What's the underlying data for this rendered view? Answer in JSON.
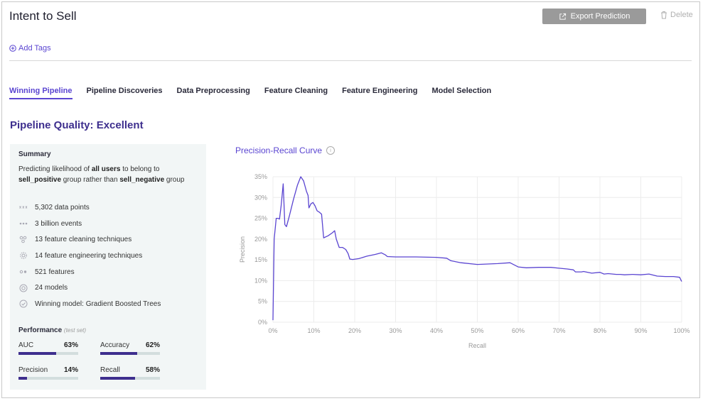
{
  "header": {
    "title": "Intent to Sell",
    "export_label": "Export Prediction",
    "delete_label": "Delete",
    "add_tags_label": "Add Tags"
  },
  "tabs": [
    {
      "label": "Winning Pipeline",
      "active": true
    },
    {
      "label": "Pipeline Discoveries",
      "active": false
    },
    {
      "label": "Data Preprocessing",
      "active": false
    },
    {
      "label": "Feature Cleaning",
      "active": false
    },
    {
      "label": "Feature Engineering",
      "active": false
    },
    {
      "label": "Model Selection",
      "active": false
    }
  ],
  "quality": "Pipeline Quality: Excellent",
  "summary": {
    "header": "Summary",
    "desc_parts": {
      "p1": "Predicting likelihood of ",
      "b1": "all users",
      "p2": " to belong to ",
      "b2": "sell_positive",
      "p3": " group rather than ",
      "b3": "sell_negative",
      "p4": " group"
    },
    "stats": [
      {
        "icon": "data-points-icon",
        "text": "5,302 data points"
      },
      {
        "icon": "events-icon",
        "text": "3 billion events"
      },
      {
        "icon": "cleaning-icon",
        "text": "13 feature cleaning techniques"
      },
      {
        "icon": "gear-icon",
        "text": "14 feature engineering techniques"
      },
      {
        "icon": "features-icon",
        "text": "521 features"
      },
      {
        "icon": "models-icon",
        "text": "24 models"
      },
      {
        "icon": "check-circle-icon",
        "text": "Winning model: Gradient Boosted Trees"
      }
    ],
    "performance": {
      "header": "Performance",
      "note": "(test set)",
      "metrics": [
        {
          "label": "AUC",
          "value": "63%",
          "fraction": 0.63
        },
        {
          "label": "Accuracy",
          "value": "62%",
          "fraction": 0.62
        },
        {
          "label": "Precision",
          "value": "14%",
          "fraction": 0.14
        },
        {
          "label": "Recall",
          "value": "58%",
          "fraction": 0.58
        }
      ]
    }
  },
  "colors": {
    "accent": "#5a45d1",
    "dark_accent": "#3e2f8e",
    "panel_bg": "#f2f6f6"
  },
  "chart_data": {
    "type": "line",
    "title": "Precision-Recall Curve",
    "xlabel": "Recall",
    "ylabel": "Precision",
    "xlim": [
      0,
      100
    ],
    "ylim": [
      0,
      35
    ],
    "xticks": [
      "0%",
      "10%",
      "20%",
      "30%",
      "40%",
      "50%",
      "60%",
      "70%",
      "80%",
      "90%",
      "100%"
    ],
    "yticks": [
      "0%",
      "5%",
      "10%",
      "15%",
      "20%",
      "25%",
      "30%",
      "35%"
    ],
    "grid": true,
    "series": [
      {
        "x": [
          0,
          0.3,
          0.8,
          1.2,
          1.6,
          2.0,
          2.5,
          2.9,
          3.3,
          4.0,
          5.0,
          6.0,
          6.8,
          7.5,
          8.2,
          8.6,
          8.8,
          9.3,
          9.8,
          10.3,
          10.8,
          11.3,
          11.9,
          12.4,
          13.5,
          14.5,
          15.1,
          15.5,
          16.2,
          17.0,
          17.8,
          18.4,
          18.8,
          19.5,
          21.0,
          23.0,
          25.0,
          26.5,
          27.5,
          28.0,
          30.0,
          35.0,
          40.0,
          42.5,
          43.5,
          46.0,
          50.0,
          55.0,
          58.0,
          60.0,
          62.0,
          65.0,
          68.0,
          70.0,
          72.0,
          73.5,
          74.0,
          75.5,
          76.0,
          78.0,
          80.0,
          81.0,
          82.0,
          84.0,
          85.0,
          86.0,
          88.0,
          90.0,
          92.0,
          94.0,
          96.0,
          98.0,
          99.5,
          100.0
        ],
        "y": [
          0.5,
          20.0,
          25.0,
          25.0,
          24.8,
          28.0,
          33.3,
          23.5,
          23.0,
          25.5,
          29.5,
          33.0,
          35.0,
          34.0,
          31.5,
          30.5,
          27.5,
          28.5,
          28.8,
          28.0,
          26.8,
          26.5,
          26.0,
          20.3,
          20.8,
          21.5,
          22.0,
          20.0,
          18.0,
          18.0,
          17.5,
          16.5,
          15.2,
          15.1,
          15.3,
          15.9,
          16.3,
          16.7,
          16.2,
          15.8,
          15.7,
          15.7,
          15.6,
          15.4,
          14.8,
          14.3,
          13.9,
          14.1,
          14.3,
          13.3,
          13.1,
          13.2,
          13.2,
          13.0,
          12.8,
          12.6,
          12.1,
          12.1,
          12.2,
          11.8,
          12.0,
          11.6,
          11.7,
          11.5,
          11.5,
          11.4,
          11.5,
          11.4,
          11.6,
          11.1,
          11.0,
          11.0,
          10.8,
          9.8
        ]
      }
    ]
  }
}
